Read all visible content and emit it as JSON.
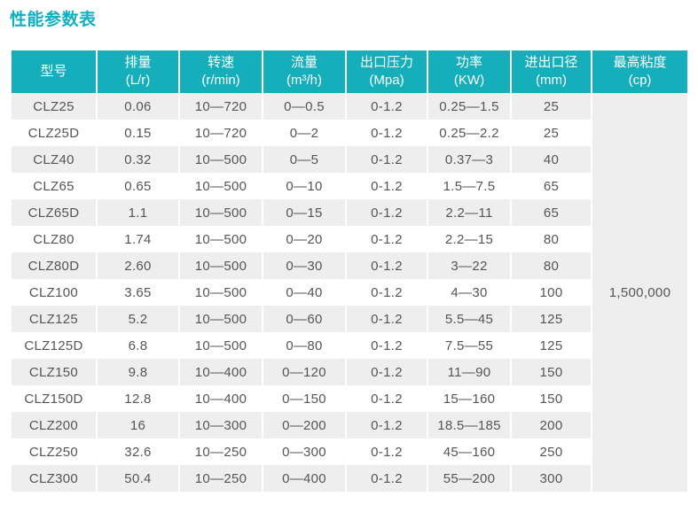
{
  "page": {
    "title": "性能参数表"
  },
  "colors": {
    "accent_teal_header": "#15aebb",
    "accent_teal_title": "#10b0c0",
    "row_stripe": "#eeeeee",
    "body_text": "#555555",
    "header_text": "#ffffff"
  },
  "table": {
    "columns": [
      {
        "label": "型号",
        "unit": ""
      },
      {
        "label": "排量",
        "unit": "(L/r)"
      },
      {
        "label": "转速",
        "unit": "(r/min)"
      },
      {
        "label": "流量",
        "unit": "(m³/h)"
      },
      {
        "label": "出口压力",
        "unit": "(Mpa)"
      },
      {
        "label": "功率",
        "unit": "(KW)"
      },
      {
        "label": "进出口径",
        "unit": "(mm)"
      },
      {
        "label": "最高粘度",
        "unit": "(cp)"
      }
    ],
    "rows": [
      [
        "CLZ25",
        "0.06",
        "10—720",
        "0—0.5",
        "0-1.2",
        "0.25—1.5",
        "25"
      ],
      [
        "CLZ25D",
        "0.15",
        "10—720",
        "0—2",
        "0-1.2",
        "0.25—2.2",
        "25"
      ],
      [
        "CLZ40",
        "0.32",
        "10—500",
        "0—5",
        "0-1.2",
        "0.37—3",
        "40"
      ],
      [
        "CLZ65",
        "0.65",
        "10—500",
        "0—10",
        "0-1.2",
        "1.5—7.5",
        "65"
      ],
      [
        "CLZ65D",
        "1.1",
        "10—500",
        "0—15",
        "0-1.2",
        "2.2—11",
        "65"
      ],
      [
        "CLZ80",
        "1.74",
        "10—500",
        "0—20",
        "0-1.2",
        "2.2—15",
        "80"
      ],
      [
        "CLZ80D",
        "2.60",
        "10—500",
        "0—30",
        "0-1.2",
        "3—22",
        "80"
      ],
      [
        "CLZ100",
        "3.65",
        "10—500",
        "0—40",
        "0-1.2",
        "4—30",
        "100"
      ],
      [
        "CLZ125",
        "5.2",
        "10—500",
        "0—60",
        "0-1.2",
        "5.5—45",
        "125"
      ],
      [
        "CLZ125D",
        "6.8",
        "10—500",
        "0—80",
        "0-1.2",
        "7.5—55",
        "125"
      ],
      [
        "CLZ150",
        "9.8",
        "10—400",
        "0—120",
        "0-1.2",
        "11—90",
        "150"
      ],
      [
        "CLZ150D",
        "12.8",
        "10—400",
        "0—150",
        "0-1.2",
        "15—160",
        "150"
      ],
      [
        "CLZ200",
        "16",
        "10—300",
        "0—200",
        "0-1.2",
        "18.5—185",
        "200"
      ],
      [
        "CLZ250",
        "32.6",
        "10—250",
        "0—300",
        "0-1.2",
        "45—160",
        "250"
      ],
      [
        "CLZ300",
        "50.4",
        "10—250",
        "0—400",
        "0-1.2",
        "55—200",
        "300"
      ]
    ],
    "merged_viscosity": "1,500,000"
  }
}
